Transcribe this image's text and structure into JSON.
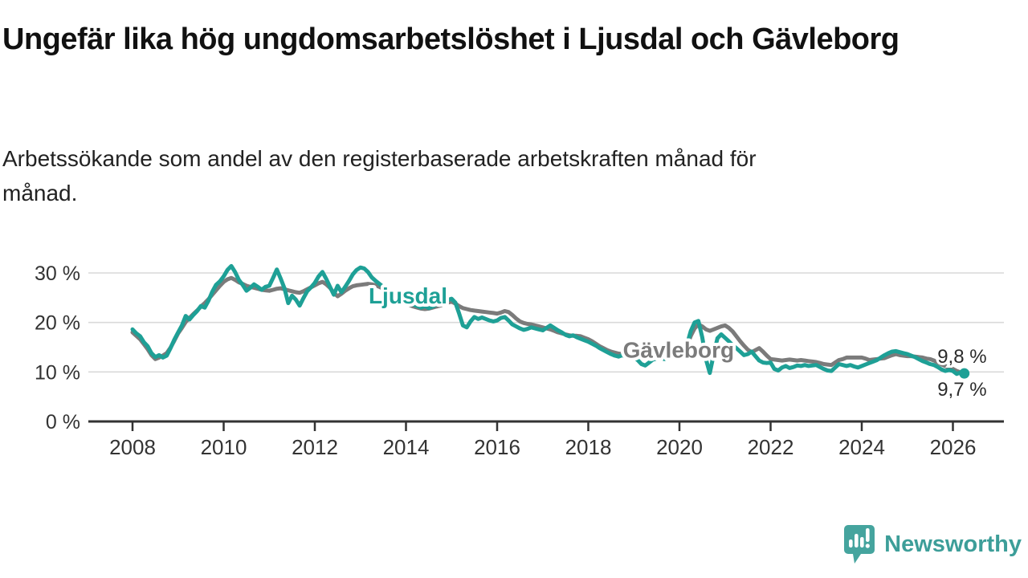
{
  "title": "Ungefär lika hög ungdomsarbetslöshet i Ljusdal och Gävleborg",
  "subtitle": "Arbetssökande som andel av den registerbaserade arbetskraften månad för månad.",
  "branding": {
    "logo_text": "Newsworthy",
    "brand_color": "#3d9e99",
    "logo_icon": "speech-bubble-bar-chart-exclamation"
  },
  "chart_data": {
    "type": "line",
    "title": "Ungefär lika hög ungdomsarbetslöshet i Ljusdal och Gävleborg",
    "xlabel": "",
    "ylabel": "",
    "grid": "horizontal",
    "legend_position": "inline-labels",
    "ylim": [
      0,
      33
    ],
    "xlim": [
      2007.85,
      2026.5
    ],
    "x_start_year": 2008,
    "points_per_year": 12,
    "y_ticks": [
      {
        "label": "30 %",
        "value": 30
      },
      {
        "label": "20 %",
        "value": 20
      },
      {
        "label": "10 %",
        "value": 10
      },
      {
        "label": "0 %",
        "value": 0
      }
    ],
    "y_gridlines": [
      10,
      20,
      30
    ],
    "x_ticks": [
      {
        "label": "2008",
        "year": 2008
      },
      {
        "label": "2010",
        "year": 2010
      },
      {
        "label": "2012",
        "year": 2012
      },
      {
        "label": "2014",
        "year": 2014
      },
      {
        "label": "2016",
        "year": 2016
      },
      {
        "label": "2018",
        "year": 2018
      },
      {
        "label": "2020",
        "year": 2020
      },
      {
        "label": "2022",
        "year": 2022
      },
      {
        "label": "2024",
        "year": 2024
      },
      {
        "label": "2026",
        "year": 2026
      }
    ],
    "series": [
      {
        "name": "Gävleborg",
        "color": "#7b7b7b",
        "stroke_width": 5,
        "end_dot_radius": 4.5,
        "latest_value_label": "9,8 %",
        "values": [
          18.0,
          17.3,
          16.6,
          15.6,
          14.6,
          13.4,
          12.6,
          12.9,
          13.3,
          13.8,
          14.9,
          16.3,
          17.8,
          18.9,
          20.1,
          20.9,
          21.7,
          22.4,
          23.2,
          23.9,
          24.7,
          25.6,
          26.5,
          27.4,
          28.2,
          28.7,
          29.0,
          28.6,
          28.1,
          27.8,
          27.4,
          27.2,
          27.0,
          26.8,
          26.6,
          26.5,
          26.4,
          26.6,
          26.8,
          26.9,
          26.7,
          26.5,
          26.3,
          26.1,
          26.0,
          26.3,
          26.7,
          27.1,
          27.5,
          27.9,
          28.2,
          27.7,
          27.0,
          26.0,
          25.3,
          25.8,
          26.4,
          26.9,
          27.3,
          27.5,
          27.6,
          27.7,
          27.8,
          27.7,
          27.5,
          27.2,
          26.8,
          26.3,
          25.8,
          25.3,
          24.8,
          24.3,
          23.9,
          23.5,
          23.2,
          23.0,
          22.8,
          22.7,
          22.8,
          23.0,
          23.2,
          23.4,
          23.7,
          24.0,
          24.2,
          23.8,
          23.3,
          22.9,
          22.7,
          22.5,
          22.4,
          22.3,
          22.2,
          22.1,
          22.0,
          21.9,
          21.8,
          22.0,
          22.3,
          22.1,
          21.5,
          20.8,
          20.2,
          19.9,
          19.7,
          19.6,
          19.4,
          19.2,
          19.0,
          18.8,
          18.6,
          18.3,
          18.0,
          17.8,
          17.6,
          17.4,
          17.3,
          17.3,
          17.2,
          16.9,
          16.6,
          16.2,
          15.7,
          15.2,
          14.8,
          14.4,
          14.1,
          13.9,
          13.7,
          13.6,
          13.4,
          13.3,
          13.4,
          13.3,
          13.1,
          12.9,
          12.8,
          12.9,
          12.8,
          12.7,
          12.8,
          12.9,
          13.0,
          13.1,
          13.3,
          13.9,
          15.4,
          17.3,
          18.8,
          19.6,
          19.2,
          18.6,
          18.3,
          18.6,
          18.9,
          19.2,
          19.4,
          18.9,
          18.2,
          17.2,
          16.2,
          15.3,
          14.5,
          14.0,
          14.4,
          14.8,
          14.1,
          13.3,
          12.6,
          12.5,
          12.4,
          12.3,
          12.4,
          12.5,
          12.4,
          12.3,
          12.4,
          12.3,
          12.2,
          12.1,
          12.0,
          11.8,
          11.6,
          11.5,
          11.4,
          11.9,
          12.4,
          12.6,
          12.9,
          12.9,
          12.9,
          12.9,
          12.9,
          12.7,
          12.4,
          12.5,
          12.6,
          12.7,
          12.8,
          13.1,
          13.4,
          13.6,
          13.4,
          13.3,
          13.2,
          13.2,
          13.1,
          13.0,
          12.9,
          12.7,
          12.6,
          12.3,
          11.9,
          11.5,
          11.2,
          10.8,
          10.6,
          10.2,
          9.9,
          9.8
        ]
      },
      {
        "name": "Ljusdal",
        "color": "#1ea096",
        "stroke_width": 5,
        "end_dot_radius": 6.5,
        "latest_value_label": "9,7 %",
        "values": [
          18.6,
          17.8,
          17.2,
          16.0,
          15.2,
          13.8,
          13.0,
          13.4,
          12.9,
          13.3,
          14.8,
          16.5,
          18.0,
          19.4,
          21.3,
          20.6,
          21.5,
          22.3,
          23.3,
          23.0,
          24.4,
          26.2,
          27.6,
          28.3,
          29.3,
          30.6,
          31.4,
          30.2,
          28.6,
          27.6,
          26.4,
          27.0,
          27.7,
          27.2,
          26.6,
          27.2,
          27.4,
          29.0,
          30.7,
          28.9,
          26.9,
          23.9,
          25.4,
          24.6,
          23.4,
          24.9,
          26.3,
          27.1,
          28.0,
          29.3,
          30.2,
          28.8,
          27.2,
          25.6,
          27.4,
          26.1,
          27.2,
          28.4,
          29.7,
          30.6,
          31.1,
          30.9,
          30.2,
          29.1,
          28.4,
          27.8,
          27.2,
          26.6,
          26.1,
          25.6,
          25.1,
          24.8,
          24.4,
          24.0,
          23.6,
          23.3,
          23.0,
          23.3,
          22.9,
          23.2,
          23.6,
          23.9,
          24.2,
          24.5,
          24.8,
          24.0,
          21.8,
          19.4,
          19.0,
          20.2,
          21.1,
          20.7,
          21.0,
          20.7,
          20.4,
          20.2,
          20.4,
          20.9,
          21.1,
          20.4,
          19.6,
          19.2,
          18.8,
          18.5,
          18.7,
          19.0,
          18.8,
          18.6,
          18.4,
          18.9,
          19.4,
          18.9,
          18.4,
          18.0,
          17.5,
          17.2,
          17.4,
          17.0,
          16.7,
          16.4,
          16.1,
          15.7,
          15.3,
          14.8,
          14.4,
          14.0,
          13.6,
          13.3,
          13.1,
          13.4,
          13.0,
          13.2,
          13.0,
          12.4,
          11.6,
          11.3,
          11.9,
          12.5,
          12.7,
          12.9,
          12.6,
          12.9,
          13.1,
          13.0,
          13.3,
          13.8,
          15.6,
          18.3,
          20.0,
          20.3,
          17.0,
          12.5,
          9.8,
          13.5,
          16.8,
          17.6,
          16.9,
          16.2,
          15.4,
          14.8,
          14.1,
          13.4,
          13.6,
          14.1,
          13.2,
          12.3,
          11.9,
          11.8,
          11.9,
          10.6,
          10.3,
          10.9,
          11.2,
          10.8,
          11.0,
          11.3,
          11.2,
          11.4,
          11.2,
          11.3,
          11.4,
          11.0,
          10.6,
          10.3,
          10.2,
          10.9,
          11.6,
          11.4,
          11.2,
          11.4,
          11.1,
          10.9,
          11.2,
          11.5,
          11.8,
          12.1,
          12.4,
          12.9,
          13.4,
          13.8,
          14.1,
          14.2,
          14.0,
          13.8,
          13.6,
          13.3,
          13.0,
          12.6,
          12.2,
          11.9,
          11.6,
          11.4,
          11.0,
          10.5,
          10.2,
          10.4,
          10.2,
          9.6,
          9.9,
          9.7
        ]
      }
    ],
    "series_labels": [
      {
        "text": "Ljusdal",
        "x": 2013.18,
        "y_pct_baseline": 23.8,
        "color": "#1ea096"
      },
      {
        "text": "Gävleborg",
        "x": 2018.76,
        "y_pct_baseline": 12.9,
        "color": "#7b7b7b"
      }
    ],
    "end_value_labels": [
      {
        "text": "9,8 %",
        "x": 2025.66,
        "y_pct_baseline": 11.8,
        "color": "#2b2b2b"
      },
      {
        "text": "9,7 %",
        "x": 2025.66,
        "y_pct_baseline": 5.2,
        "color": "#2b2b2b"
      }
    ]
  }
}
